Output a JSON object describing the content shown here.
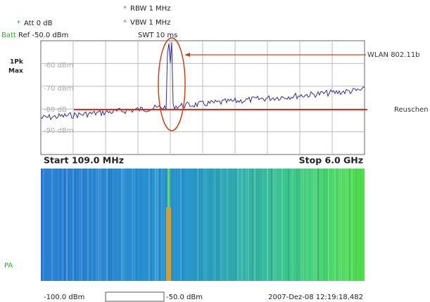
{
  "header": {
    "rbw": "RBW 1 MHz",
    "att": "Att  0 dB",
    "vbw": "VBW 1 MHz",
    "batt": "Batt",
    "ref": "Ref  -50.0 dBm",
    "swt": "SWT 10 ms"
  },
  "trace_labels": {
    "detector": "1Pk",
    "mode": "Max"
  },
  "level_labels": [
    "-60 dBm",
    "-70 dBm",
    "-80 dB",
    "-90 dBm"
  ],
  "annotations": {
    "wlan": "WLAN 802.11b",
    "noise": "Reuschen"
  },
  "span": {
    "start": "Start 109.0 MHz",
    "stop": "Stop 6.0 GHz"
  },
  "waterfall": {
    "label": "PA",
    "scale_min": "-100.0 dBm",
    "scale_max": "-50.0 dBm",
    "timestamp": "2007-Dez-08 12:19:18,482"
  }
}
